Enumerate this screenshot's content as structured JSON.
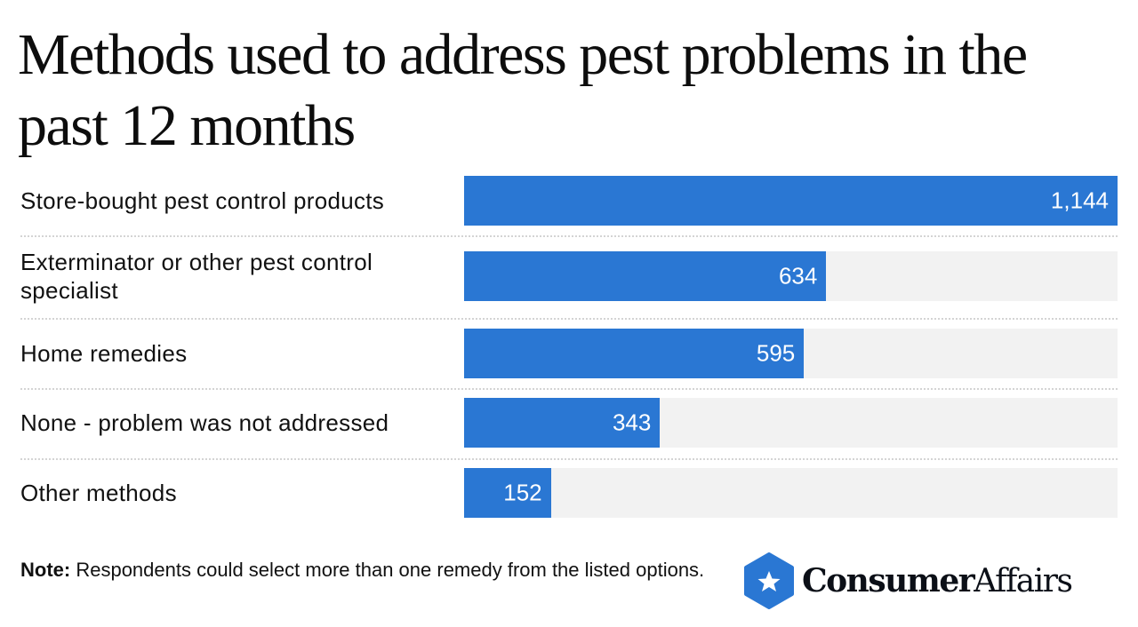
{
  "chart_data": {
    "type": "bar",
    "orientation": "horizontal",
    "title": "Methods used to address pest problems in the past 12 months",
    "categories": [
      "Store-bought pest control products",
      "Exterminator or other pest control specialist",
      "Home remedies",
      "None - problem was not addressed",
      "Other methods"
    ],
    "values": [
      1144,
      634,
      595,
      343,
      152
    ],
    "value_labels": [
      "1,144",
      "634",
      "595",
      "343",
      "152"
    ],
    "xlim": [
      0,
      1144
    ],
    "grid": false,
    "bar_color": "#2a77d3",
    "track_color": "#f2f2f2"
  },
  "note": {
    "label": "Note:",
    "text": " Respondents could select more than one remedy from the listed options."
  },
  "logo": {
    "bold": "Consumer",
    "regular": "Affairs",
    "color": "#2a77d3"
  }
}
